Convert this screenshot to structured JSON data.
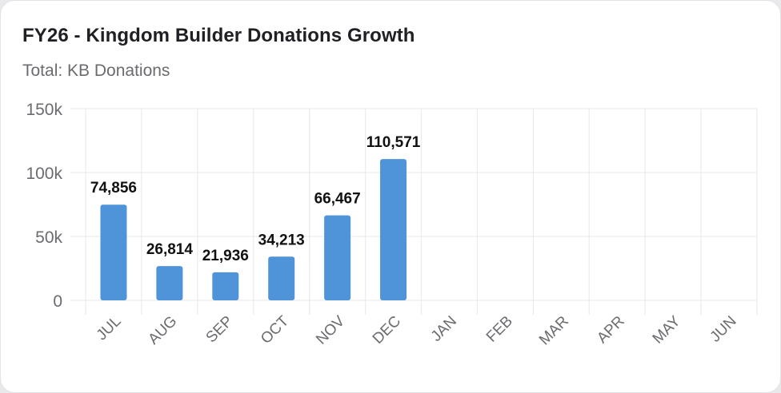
{
  "card": {
    "title": "FY26 - Kingdom Builder Donations Growth",
    "subtitle": "Total: KB Donations"
  },
  "chart_data": {
    "type": "bar",
    "title": "FY26 - Kingdom Builder Donations Growth",
    "subtitle": "Total: KB Donations",
    "xlabel": "",
    "ylabel": "",
    "categories": [
      "JUL",
      "AUG",
      "SEP",
      "OCT",
      "NOV",
      "DEC",
      "JAN",
      "FEB",
      "MAR",
      "APR",
      "MAY",
      "JUN"
    ],
    "series": [
      {
        "name": "KB Donations",
        "values": [
          74856,
          26814,
          21936,
          34213,
          66467,
          110571,
          null,
          null,
          null,
          null,
          null,
          null
        ],
        "labels": [
          "74,856",
          "26,814",
          "21,936",
          "34,213",
          "66,467",
          "110,571",
          null,
          null,
          null,
          null,
          null,
          null
        ]
      }
    ],
    "ylim": [
      0,
      150000
    ],
    "yticks": [
      0,
      50000,
      100000,
      150000
    ],
    "ytick_labels": [
      "0",
      "50k",
      "100k",
      "150k"
    ],
    "grid": true,
    "bar_color": "#4f94d9"
  }
}
